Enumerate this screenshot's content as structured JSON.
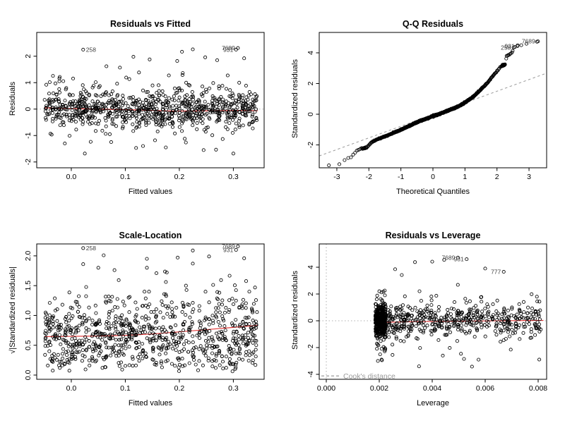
{
  "figure": {
    "background": "#ffffff",
    "description": "R regression diagnostic plots, 2x2 grid"
  },
  "style": {
    "point_color": "#000000",
    "smooth_line_color": "#e23b3b",
    "reference_line_color": "#9a9a9a",
    "dotted_line_color": "#b0b0b0",
    "outlier_label_color": "#404040",
    "cooks_legend_color": "#9a9a9a"
  },
  "chart_data": [
    {
      "id": "residuals-vs-fitted",
      "type": "scatter",
      "title": "Residuals vs Fitted",
      "xlabel": "Fitted values",
      "ylabel": "Residuals",
      "xlim": [
        -0.064,
        0.357
      ],
      "ylim": [
        -2.22,
        2.9
      ],
      "xticks": {
        "values": [
          0,
          0.1,
          0.2,
          0.3
        ],
        "labels": [
          "0.0",
          "0.1",
          "0.2",
          "0.3"
        ]
      },
      "yticks": {
        "values": [
          -2,
          -1,
          0,
          1,
          2
        ],
        "labels": [
          "-2",
          "-1",
          "0",
          "1",
          "2"
        ]
      },
      "hline": 0,
      "smooth": [
        [
          -0.05,
          0.05
        ],
        [
          0,
          0.02
        ],
        [
          0.05,
          0
        ],
        [
          0.1,
          -0.02
        ],
        [
          0.15,
          -0.05
        ],
        [
          0.19,
          -0.075
        ],
        [
          0.23,
          -0.07
        ],
        [
          0.27,
          -0.06
        ],
        [
          0.31,
          -0.05
        ],
        [
          0.345,
          -0.06
        ]
      ],
      "labeled_points": [
        {
          "label": "258",
          "x": 0.022,
          "y": 2.25,
          "side": "right"
        },
        {
          "label": "7689",
          "x": 0.3085,
          "y": 2.31,
          "side": "left"
        },
        {
          "label": "931",
          "x": 0.305,
          "y": 2.25,
          "side": "left"
        }
      ],
      "extra_points": [
        [
          0.225,
          2.26
        ],
        [
          0.205,
          2.17
        ],
        [
          0.115,
          1.98
        ],
        [
          0.145,
          1.88
        ],
        [
          0.196,
          1.82
        ],
        [
          0.32,
          1.92
        ],
        [
          0.065,
          1.62
        ],
        [
          0.09,
          1.57
        ],
        [
          0.248,
          1.96
        ],
        [
          0.27,
          1.85
        ],
        [
          0.025,
          -1.68
        ],
        [
          0.3,
          -1.68
        ],
        [
          0.245,
          -1.55
        ],
        [
          0.12,
          -1.47
        ],
        [
          -0.012,
          -1.3
        ],
        [
          0.175,
          -1.45
        ],
        [
          0.21,
          -1.12
        ],
        [
          0.155,
          -1.18
        ]
      ],
      "scatter": {
        "n": 860,
        "x_min": -0.05,
        "x_max": 0.345,
        "bands": 64,
        "band_prob": 0.55,
        "y_model": "residual",
        "y_scale": 0.58,
        "y_clip": [
          -1.72,
          1.72
        ]
      },
      "seed": 42
    },
    {
      "id": "qq-residuals",
      "type": "scatter",
      "title": "Q-Q Residuals",
      "xlabel": "Theoretical Quantiles",
      "ylabel": "Standardized residuals",
      "xlim": [
        -3.55,
        3.55
      ],
      "ylim": [
        -3.49,
        5.33
      ],
      "xticks": {
        "values": [
          -3,
          -2,
          -1,
          0,
          1,
          2,
          3
        ],
        "labels": [
          "-3",
          "-2",
          "-1",
          "0",
          "1",
          "2",
          "3"
        ]
      },
      "yticks": {
        "values": [
          -2,
          0,
          2,
          4
        ],
        "labels": [
          "-2",
          "0",
          "2",
          "4"
        ]
      },
      "refline": {
        "intercept": -0.02,
        "slope": 0.76
      },
      "curve": [
        [
          -3.3,
          -3.38
        ],
        [
          -2.95,
          -3.36
        ],
        [
          -2.86,
          -3.1
        ],
        [
          -2.75,
          -2.98
        ],
        [
          -2.65,
          -2.85
        ],
        [
          -2.55,
          -2.78
        ],
        [
          -2.45,
          -2.55
        ],
        [
          -2.38,
          -2.4
        ],
        [
          -2.3,
          -2.28
        ],
        [
          -2.2,
          -2.22
        ],
        [
          -2.1,
          -2.2
        ],
        [
          -2.02,
          -2.08
        ],
        [
          -1.95,
          -1.9
        ],
        [
          -1.85,
          -1.75
        ],
        [
          -1.7,
          -1.6
        ],
        [
          -1.5,
          -1.45
        ],
        [
          -1.3,
          -1.28
        ],
        [
          -1.1,
          -1.1
        ],
        [
          -0.9,
          -0.92
        ],
        [
          -0.7,
          -0.72
        ],
        [
          -0.5,
          -0.52
        ],
        [
          -0.3,
          -0.36
        ],
        [
          -0.1,
          -0.2
        ],
        [
          0,
          -0.12
        ],
        [
          0.15,
          -0.02
        ],
        [
          0.3,
          0.1
        ],
        [
          0.5,
          0.26
        ],
        [
          0.7,
          0.42
        ],
        [
          0.9,
          0.62
        ],
        [
          1.1,
          0.9
        ],
        [
          1.3,
          1.22
        ],
        [
          1.5,
          1.62
        ],
        [
          1.7,
          2.05
        ],
        [
          1.85,
          2.42
        ],
        [
          1.95,
          2.7
        ],
        [
          2.05,
          2.92
        ],
        [
          2.12,
          3.1
        ],
        [
          2.22,
          3.22
        ],
        [
          2.26,
          3.24
        ],
        [
          2.3,
          3.78
        ],
        [
          2.36,
          3.86
        ],
        [
          2.42,
          3.95
        ],
        [
          2.48,
          4.08
        ],
        [
          2.52,
          4.35
        ],
        [
          2.62,
          4.45
        ],
        [
          3.3,
          4.75
        ]
      ],
      "labeled_points": [
        {
          "label": "258",
          "x": 2.52,
          "y": 4.35,
          "side": "left"
        },
        {
          "label": "931",
          "x": 2.64,
          "y": 4.44,
          "side": "left"
        },
        {
          "label": "7689",
          "x": 3.28,
          "y": 4.75,
          "side": "left"
        }
      ],
      "extra_points": [
        [
          2.16,
          3.16
        ],
        [
          2.18,
          3.18
        ],
        [
          2.2,
          3.2
        ],
        [
          2.22,
          3.22
        ],
        [
          2.24,
          3.23
        ],
        [
          2.19,
          3.15
        ],
        [
          2.21,
          3.17
        ],
        [
          2.23,
          3.19
        ],
        [
          2.17,
          3.22
        ],
        [
          2.2,
          3.24
        ],
        [
          2.15,
          3.12
        ],
        [
          2.25,
          3.25
        ],
        [
          -2.12,
          -2.22
        ],
        [
          -2.16,
          -2.24
        ],
        [
          -2.2,
          -2.26
        ],
        [
          -2.14,
          -2.18
        ],
        [
          -2.18,
          -2.22
        ],
        [
          -2.1,
          -2.15
        ],
        [
          -2.08,
          -2.2
        ],
        [
          2.47,
          4.02
        ],
        [
          2.41,
          3.93
        ],
        [
          2.35,
          3.86
        ],
        [
          2.3,
          3.8
        ]
      ],
      "scatter": {
        "n": 860,
        "y_jitter": 0.018
      },
      "seed": 7
    },
    {
      "id": "scale-location",
      "type": "scatter",
      "title": "Scale-Location",
      "xlabel": "Fitted values",
      "ylabel": "√|Standardized residuals|",
      "xlim": [
        -0.064,
        0.357
      ],
      "ylim": [
        -0.071,
        2.2
      ],
      "xticks": {
        "values": [
          0,
          0.1,
          0.2,
          0.3
        ],
        "labels": [
          "0.0",
          "0.1",
          "0.2",
          "0.3"
        ]
      },
      "yticks": {
        "values": [
          0,
          0.5,
          1,
          1.5,
          2
        ],
        "labels": [
          "0.0",
          "0.5",
          "1.0",
          "1.5",
          "2.0"
        ]
      },
      "smooth": [
        [
          -0.05,
          0.645
        ],
        [
          0,
          0.65
        ],
        [
          0.05,
          0.655
        ],
        [
          0.1,
          0.665
        ],
        [
          0.15,
          0.69
        ],
        [
          0.2,
          0.725
        ],
        [
          0.25,
          0.762
        ],
        [
          0.3,
          0.8
        ],
        [
          0.345,
          0.835
        ]
      ],
      "labeled_points": [
        {
          "label": "258",
          "x": 0.022,
          "y": 2.13,
          "side": "right"
        },
        {
          "label": "7689",
          "x": 0.3085,
          "y": 2.16,
          "side": "left"
        },
        {
          "label": "931",
          "x": 0.305,
          "y": 2.1,
          "side": "left"
        }
      ],
      "extra_points": [
        [
          0.06,
          2.01
        ],
        [
          0.225,
          2.09
        ],
        [
          0.197,
          1.97
        ],
        [
          0.14,
          1.95
        ],
        [
          0.32,
          1.96
        ],
        [
          0.022,
          1.86
        ],
        [
          0.05,
          1.8
        ],
        [
          0.255,
          1.99
        ],
        [
          0.225,
          1.87
        ],
        [
          0.14,
          1.8
        ],
        [
          0.08,
          1.76
        ]
      ],
      "scatter": {
        "n": 860,
        "x_min": -0.05,
        "x_max": 0.345,
        "bands": 64,
        "band_prob": 0.55,
        "y_model": "sqrtabs",
        "y_clip": [
          0.04,
          1.74
        ]
      },
      "seed": 99
    },
    {
      "id": "residuals-vs-leverage",
      "type": "scatter",
      "title": "Residuals vs Leverage",
      "xlabel": "Leverage",
      "ylabel": "Standardized residuals",
      "xlim": [
        -0.000267,
        0.00832
      ],
      "ylim": [
        -4.37,
        5.74
      ],
      "xticks": {
        "values": [
          0,
          0.002,
          0.004,
          0.006,
          0.008
        ],
        "labels": [
          "0.000",
          "0.002",
          "0.004",
          "0.006",
          "0.008"
        ]
      },
      "yticks": {
        "values": [
          -4,
          -2,
          0,
          2,
          4
        ],
        "labels": [
          "-4",
          "-2",
          "0",
          "2",
          "4"
        ]
      },
      "hline": 0,
      "vline": 0,
      "cooks_legend": {
        "label": "Cook's distance",
        "y": -4.12
      },
      "smooth": [
        [
          0.00185,
          -0.13
        ],
        [
          0.003,
          -0.08
        ],
        [
          0.004,
          -0.05
        ],
        [
          0.005,
          -0.03
        ],
        [
          0.006,
          -0.01
        ],
        [
          0.007,
          0.01
        ],
        [
          0.0082,
          0.03
        ]
      ],
      "labeled_points": [
        {
          "label": "7689",
          "x": 0.00497,
          "y": 4.72,
          "side": "left"
        },
        {
          "label": "931",
          "x": 0.0053,
          "y": 4.6,
          "side": "left"
        },
        {
          "label": "777",
          "x": 0.0067,
          "y": 3.66,
          "side": "left"
        }
      ],
      "extra_points": [
        [
          0.00445,
          4.55
        ],
        [
          0.004,
          4.42
        ],
        [
          0.00335,
          4.38
        ],
        [
          0.0026,
          3.85
        ],
        [
          0.00285,
          3.42
        ],
        [
          0.006,
          3.9
        ],
        [
          0.0035,
          -3.4
        ],
        [
          0.0055,
          -3.42
        ],
        [
          0.00195,
          -3.0
        ],
        [
          0.0021,
          -2.95
        ],
        [
          0.0052,
          -2.85
        ],
        [
          0.00575,
          -2.9
        ],
        [
          0.0044,
          -2.6
        ],
        [
          0.0025,
          -2.55
        ]
      ],
      "scatter": {
        "n": 920,
        "stripe_frac": 0.42,
        "stripe": [
          0.00185,
          0.00225
        ],
        "x_min": 0.002,
        "x_max": 0.0081,
        "bands": 42,
        "band_prob": 0.5,
        "y_model": "standardized",
        "y_clip": [
          -3.05,
          3.3
        ]
      },
      "seed": 2024
    }
  ]
}
